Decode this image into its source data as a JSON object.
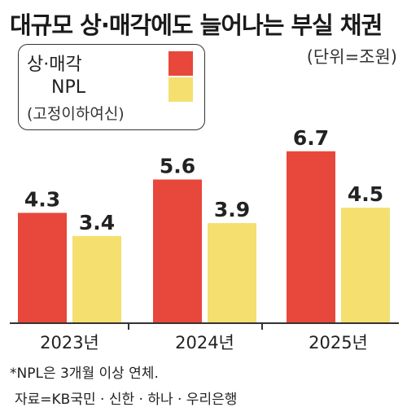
{
  "title": "대규모 상·매각에도 늘어나는 부실 채권",
  "unit": "(단위=조원)",
  "legend": {
    "series1": "상·매각",
    "series2": "NPL",
    "series2_sub": "(고정이하여신)"
  },
  "colors": {
    "series1": "#e8473b",
    "series2": "#f5df6e",
    "axis": "#333333"
  },
  "chart_data": {
    "type": "bar",
    "categories": [
      "2023년",
      "2024년",
      "2025년"
    ],
    "series": [
      {
        "name": "상·매각",
        "values": [
          4.3,
          5.6,
          6.7
        ],
        "labels": [
          "4.3",
          "5.6",
          "6.7"
        ]
      },
      {
        "name": "NPL",
        "values": [
          3.4,
          3.9,
          4.5
        ],
        "labels": [
          "3.4",
          "3.9",
          "4.5"
        ]
      }
    ],
    "title": "대규모 상·매각에도 늘어나는 부실 채권",
    "ylabel": "",
    "ylim": [
      0,
      7.9
    ],
    "grid": false,
    "legend_position": "top-left"
  },
  "footnotes": {
    "note": "*NPL은 3개월 이상 연체.",
    "source": "자료=KB국민 · 신한 · 하나 · 우리은행"
  }
}
